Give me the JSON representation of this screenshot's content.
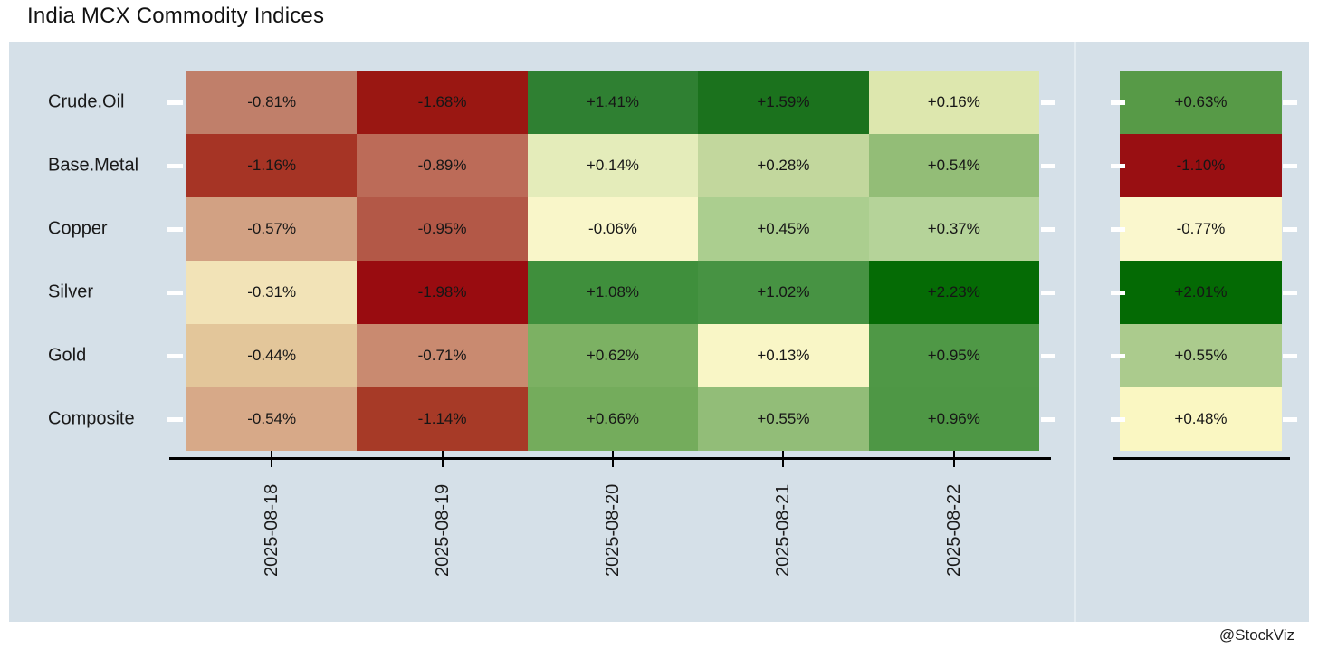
{
  "title": "India MCX Commodity Indices",
  "watermark": "@StockViz",
  "colors": {
    "panel_bg": "#d5e0e8",
    "facet_divider": "#e4ecf1",
    "axis_line": "#000000",
    "tick_white": "#ffffff",
    "text": "#1a1a1a"
  },
  "chart_data": {
    "type": "heatmap",
    "title": "India MCX Commodity Indices",
    "colormap": "RdYlGn (dark red = most negative, pale yellow = near zero, dark green = most positive), scaled per facet",
    "legend": "none",
    "rows": [
      "Crude.Oil",
      "Base.Metal",
      "Copper",
      "Silver",
      "Gold",
      "Composite"
    ],
    "columns": [
      "2025-08-18",
      "2025-08-19",
      "2025-08-20",
      "2025-08-21",
      "2025-08-22"
    ],
    "values_pct": [
      [
        -0.81,
        -1.68,
        1.41,
        1.59,
        0.16
      ],
      [
        -1.16,
        -0.89,
        0.14,
        0.28,
        0.54
      ],
      [
        -0.57,
        -0.95,
        -0.06,
        0.45,
        0.37
      ],
      [
        -0.31,
        -1.98,
        1.08,
        1.02,
        2.23
      ],
      [
        -0.44,
        -0.71,
        0.62,
        0.13,
        0.95
      ],
      [
        -0.54,
        -1.14,
        0.66,
        0.55,
        0.96
      ]
    ],
    "cell_labels": [
      [
        "-0.81%",
        "-1.68%",
        "+1.41%",
        "+1.59%",
        "+0.16%"
      ],
      [
        "-1.16%",
        "-0.89%",
        "+0.14%",
        "+0.28%",
        "+0.54%"
      ],
      [
        "-0.57%",
        "-0.95%",
        "-0.06%",
        "+0.45%",
        "+0.37%"
      ],
      [
        "-0.31%",
        "-1.98%",
        "+1.08%",
        "+1.02%",
        "+2.23%"
      ],
      [
        "-0.44%",
        "-0.71%",
        "+0.62%",
        "+0.13%",
        "+0.95%"
      ],
      [
        "-0.54%",
        "-1.14%",
        "+0.66%",
        "+0.55%",
        "+0.96%"
      ]
    ],
    "cell_colors": [
      [
        "#c07f6a",
        "#9a1712",
        "#2f8032",
        "#1b721d",
        "#dde7ae"
      ],
      [
        "#a63425",
        "#bc6b58",
        "#e4ecba",
        "#c2d79d",
        "#93bd77"
      ],
      [
        "#d2a183",
        "#b35847",
        "#f9f6c9",
        "#abce8f",
        "#b5d399"
      ],
      [
        "#f2e3b7",
        "#990c10",
        "#3f8f3c",
        "#479343",
        "#056b05"
      ],
      [
        "#e3c69a",
        "#c98a70",
        "#7cb163",
        "#f9f6c6",
        "#4f9846"
      ],
      [
        "#d7a988",
        "#a73a27",
        "#74ac5c",
        "#92bd78",
        "#4e9745"
      ]
    ],
    "summary_column": {
      "values_pct": [
        0.63,
        -1.1,
        -0.77,
        2.01,
        0.55,
        0.48
      ],
      "labels": [
        "+0.63%",
        "-1.10%",
        "-0.77%",
        "+2.01%",
        "+0.55%",
        "+0.48%"
      ],
      "colors": [
        "#579a47",
        "#990f12",
        "#faf7cd",
        "#046a04",
        "#abcb8d",
        "#faf7c2"
      ]
    }
  }
}
